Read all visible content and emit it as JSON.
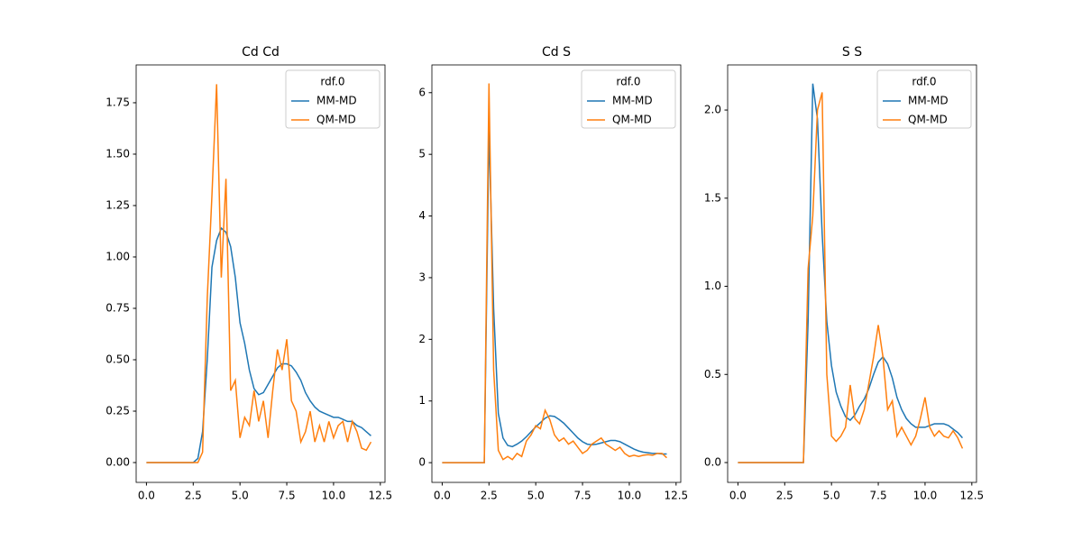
{
  "chart_data": [
    {
      "type": "line",
      "title": "Cd Cd",
      "legend_title": "rdf.0",
      "legend": "upper right",
      "x": [
        0,
        0.25,
        0.5,
        0.75,
        1,
        1.25,
        1.5,
        1.75,
        2,
        2.25,
        2.5,
        2.75,
        3,
        3.25,
        3.5,
        3.75,
        4,
        4.25,
        4.5,
        4.75,
        5,
        5.25,
        5.5,
        5.75,
        6,
        6.25,
        6.5,
        6.75,
        7,
        7.25,
        7.5,
        7.75,
        8,
        8.25,
        8.5,
        8.75,
        9,
        9.25,
        9.5,
        9.75,
        10,
        10.25,
        10.5,
        10.75,
        11,
        11.25,
        11.5,
        11.75,
        12
      ],
      "series": [
        {
          "name": "MM-MD",
          "color": "#1f77b4",
          "values": [
            0,
            0,
            0,
            0,
            0,
            0,
            0,
            0,
            0,
            0,
            0,
            0.02,
            0.15,
            0.5,
            0.95,
            1.08,
            1.14,
            1.12,
            1.05,
            0.9,
            0.68,
            0.58,
            0.45,
            0.36,
            0.33,
            0.34,
            0.38,
            0.42,
            0.46,
            0.48,
            0.48,
            0.47,
            0.44,
            0.4,
            0.34,
            0.3,
            0.27,
            0.25,
            0.24,
            0.23,
            0.22,
            0.22,
            0.21,
            0.2,
            0.2,
            0.18,
            0.17,
            0.15,
            0.13
          ]
        },
        {
          "name": "QM-MD",
          "color": "#ff7f0e",
          "values": [
            0,
            0,
            0,
            0,
            0,
            0,
            0,
            0,
            0,
            0,
            0,
            0,
            0.05,
            0.8,
            1.3,
            1.84,
            0.9,
            1.38,
            0.35,
            0.4,
            0.12,
            0.22,
            0.18,
            0.35,
            0.2,
            0.3,
            0.12,
            0.35,
            0.55,
            0.45,
            0.6,
            0.3,
            0.25,
            0.1,
            0.15,
            0.25,
            0.1,
            0.18,
            0.1,
            0.2,
            0.12,
            0.18,
            0.2,
            0.1,
            0.2,
            0.15,
            0.07,
            0.06,
            0.1
          ]
        }
      ],
      "xlim": [
        -0.55,
        12.75
      ],
      "xticks": [
        {
          "value": 0,
          "label": "0.0"
        },
        2.5,
        {
          "value": 5,
          "label": "5.0"
        },
        7.5,
        {
          "value": 10,
          "label": "10.0"
        },
        12.5
      ],
      "ylim": [
        -0.0965,
        1.934
      ],
      "yticks": [
        {
          "value": 0,
          "label": "0.00"
        },
        0.25,
        {
          "value": 0.5,
          "label": "0.50"
        },
        0.75,
        {
          "value": 1,
          "label": "1.00"
        },
        1.25,
        {
          "value": 1.5,
          "label": "1.50"
        },
        1.75
      ]
    },
    {
      "type": "line",
      "title": "Cd S",
      "legend_title": "rdf.0",
      "legend": "upper right",
      "x": [
        0,
        0.25,
        0.5,
        0.75,
        1,
        1.25,
        1.5,
        1.75,
        2,
        2.25,
        2.5,
        2.75,
        3,
        3.25,
        3.5,
        3.75,
        4,
        4.25,
        4.5,
        4.75,
        5,
        5.25,
        5.5,
        5.75,
        6,
        6.25,
        6.5,
        6.75,
        7,
        7.25,
        7.5,
        7.75,
        8,
        8.25,
        8.5,
        8.75,
        9,
        9.25,
        9.5,
        9.75,
        10,
        10.25,
        10.5,
        10.75,
        11,
        11.25,
        11.5,
        11.75,
        12
      ],
      "series": [
        {
          "name": "MM-MD",
          "color": "#1f77b4",
          "values": [
            0,
            0,
            0,
            0,
            0,
            0,
            0,
            0,
            0,
            0,
            5.4,
            2.5,
            0.8,
            0.4,
            0.28,
            0.26,
            0.3,
            0.35,
            0.42,
            0.5,
            0.58,
            0.65,
            0.72,
            0.76,
            0.75,
            0.7,
            0.64,
            0.56,
            0.48,
            0.4,
            0.34,
            0.3,
            0.29,
            0.3,
            0.32,
            0.34,
            0.36,
            0.36,
            0.34,
            0.3,
            0.26,
            0.22,
            0.19,
            0.17,
            0.16,
            0.15,
            0.15,
            0.14,
            0.14
          ]
        },
        {
          "name": "QM-MD",
          "color": "#ff7f0e",
          "values": [
            0,
            0,
            0,
            0,
            0,
            0,
            0,
            0,
            0,
            0,
            6.15,
            1.5,
            0.2,
            0.05,
            0.1,
            0.05,
            0.15,
            0.1,
            0.35,
            0.45,
            0.6,
            0.55,
            0.85,
            0.7,
            0.45,
            0.35,
            0.4,
            0.3,
            0.35,
            0.25,
            0.15,
            0.2,
            0.3,
            0.35,
            0.4,
            0.3,
            0.25,
            0.2,
            0.25,
            0.15,
            0.1,
            0.12,
            0.1,
            0.12,
            0.13,
            0.12,
            0.15,
            0.15,
            0.08
          ]
        }
      ],
      "xlim": [
        -0.55,
        12.75
      ],
      "xticks": [
        {
          "value": 0,
          "label": "0.0"
        },
        2.5,
        {
          "value": 5,
          "label": "5.0"
        },
        7.5,
        {
          "value": 10,
          "label": "10.0"
        },
        12.5
      ],
      "ylim": [
        -0.32,
        6.45
      ],
      "yticks": [
        0,
        1,
        2,
        3,
        4,
        5,
        6
      ]
    },
    {
      "type": "line",
      "title": "S S",
      "legend_title": "rdf.0",
      "legend": "upper right",
      "x": [
        0,
        0.25,
        0.5,
        0.75,
        1,
        1.25,
        1.5,
        1.75,
        2,
        2.25,
        2.5,
        2.75,
        3,
        3.25,
        3.5,
        3.75,
        4,
        4.25,
        4.5,
        4.75,
        5,
        5.25,
        5.5,
        5.75,
        6,
        6.25,
        6.5,
        6.75,
        7,
        7.25,
        7.5,
        7.75,
        8,
        8.25,
        8.5,
        8.75,
        9,
        9.25,
        9.5,
        9.75,
        10,
        10.25,
        10.5,
        10.75,
        11,
        11.25,
        11.5,
        11.75,
        12
      ],
      "series": [
        {
          "name": "MM-MD",
          "color": "#1f77b4",
          "values": [
            0,
            0,
            0,
            0,
            0,
            0,
            0,
            0,
            0,
            0,
            0,
            0,
            0,
            0,
            0,
            0.8,
            2.15,
            1.95,
            1.3,
            0.8,
            0.55,
            0.4,
            0.32,
            0.26,
            0.24,
            0.27,
            0.32,
            0.36,
            0.42,
            0.5,
            0.57,
            0.6,
            0.56,
            0.48,
            0.37,
            0.3,
            0.25,
            0.22,
            0.2,
            0.2,
            0.2,
            0.21,
            0.22,
            0.22,
            0.22,
            0.21,
            0.19,
            0.17,
            0.14
          ]
        },
        {
          "name": "QM-MD",
          "color": "#ff7f0e",
          "values": [
            0,
            0,
            0,
            0,
            0,
            0,
            0,
            0,
            0,
            0,
            0,
            0,
            0,
            0,
            0,
            1.1,
            1.4,
            2.0,
            2.1,
            0.5,
            0.15,
            0.12,
            0.15,
            0.2,
            0.44,
            0.25,
            0.22,
            0.3,
            0.45,
            0.6,
            0.78,
            0.6,
            0.3,
            0.35,
            0.15,
            0.2,
            0.15,
            0.1,
            0.15,
            0.25,
            0.37,
            0.2,
            0.15,
            0.18,
            0.15,
            0.14,
            0.18,
            0.14,
            0.08
          ]
        }
      ],
      "xlim": [
        -0.55,
        12.75
      ],
      "xticks": [
        {
          "value": 0,
          "label": "0.0"
        },
        2.5,
        {
          "value": 5,
          "label": "5.0"
        },
        7.5,
        {
          "value": 10,
          "label": "10.0"
        },
        12.5
      ],
      "ylim": [
        -0.1125,
        2.256
      ],
      "yticks": [
        {
          "value": 0,
          "label": "0.0"
        },
        0.5,
        {
          "value": 1,
          "label": "1.0"
        },
        1.5,
        {
          "value": 2,
          "label": "2.0"
        }
      ]
    }
  ]
}
